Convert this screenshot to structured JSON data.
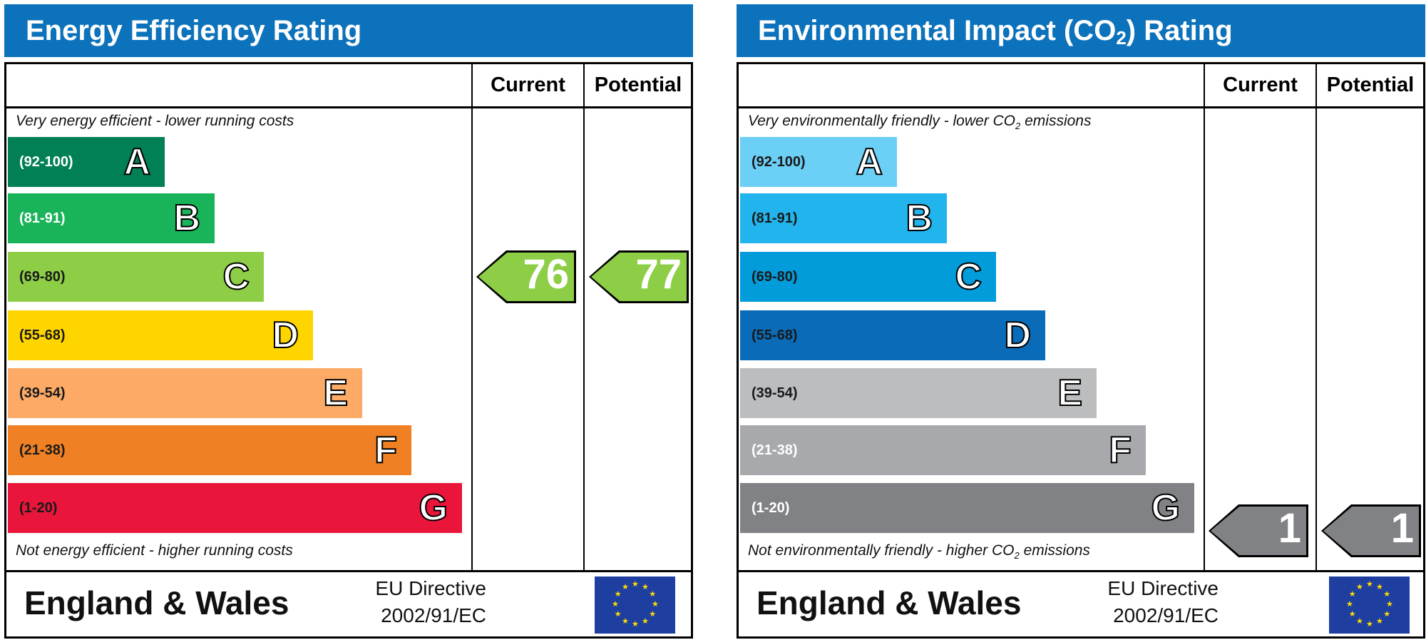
{
  "chart_data": [
    {
      "type": "table",
      "title": "Energy Efficiency Rating",
      "columns": [
        "Current",
        "Potential"
      ],
      "top_note": {
        "text": "Very energy efficient - lower running costs"
      },
      "bottom_note": {
        "text": "Not energy efficient - higher running costs"
      },
      "bands": [
        {
          "range": "(92-100)",
          "letter": "A",
          "color": "#008054",
          "text_color": "#ffffff"
        },
        {
          "range": "(81-91)",
          "letter": "B",
          "color": "#19b459",
          "text_color": "#ffffff"
        },
        {
          "range": "(69-80)",
          "letter": "C",
          "color": "#8dce46",
          "text_color": "#1a1a1a"
        },
        {
          "range": "(55-68)",
          "letter": "D",
          "color": "#ffd500",
          "text_color": "#1a1a1a"
        },
        {
          "range": "(39-54)",
          "letter": "E",
          "color": "#fcaa65",
          "text_color": "#1a1a1a"
        },
        {
          "range": "(21-38)",
          "letter": "F",
          "color": "#ef8023",
          "text_color": "#1a1a1a"
        },
        {
          "range": "(1-20)",
          "letter": "G",
          "color": "#e9153b",
          "text_color": "#1a1a1a"
        }
      ],
      "current": {
        "value": "76",
        "band": "C",
        "color": "#8dce46"
      },
      "potential": {
        "value": "77",
        "band": "C",
        "color": "#8dce46"
      },
      "footer": {
        "region": "England & Wales",
        "directive_line1": "EU Directive",
        "directive_line2": "2002/91/EC"
      },
      "header_color": "#0c72bb"
    },
    {
      "type": "table",
      "title": "Environmental Impact (CO2) Rating",
      "title_parts": {
        "pre": "Environmental Impact (CO",
        "sub": "2",
        "post": ") Rating"
      },
      "columns": [
        "Current",
        "Potential"
      ],
      "top_note": {
        "pre": "Very environmentally friendly - lower CO",
        "sub": "2",
        "post": " emissions"
      },
      "bottom_note": {
        "pre": "Not environmentally friendly - higher CO",
        "sub": "2",
        "post": " emissions"
      },
      "bands": [
        {
          "range": "(92-100)",
          "letter": "A",
          "color": "#6ccff6",
          "text_color": "#1a1a1a"
        },
        {
          "range": "(81-91)",
          "letter": "B",
          "color": "#22b5ed",
          "text_color": "#1a1a1a"
        },
        {
          "range": "(69-80)",
          "letter": "C",
          "color": "#029cdb",
          "text_color": "#1a1a1a"
        },
        {
          "range": "(55-68)",
          "letter": "D",
          "color": "#0a6cb8",
          "text_color": "#1a1a1a"
        },
        {
          "range": "(39-54)",
          "letter": "E",
          "color": "#bbbdbf",
          "text_color": "#1a1a1a"
        },
        {
          "range": "(21-38)",
          "letter": "F",
          "color": "#a7a9ac",
          "text_color": "#ffffff"
        },
        {
          "range": "(1-20)",
          "letter": "G",
          "color": "#808285",
          "text_color": "#ffffff"
        }
      ],
      "current": {
        "value": "1",
        "band": "G",
        "color": "#808285"
      },
      "potential": {
        "value": "1",
        "band": "G",
        "color": "#808285"
      },
      "footer": {
        "region": "England & Wales",
        "directive_line1": "EU Directive",
        "directive_line2": "2002/91/EC"
      },
      "header_color": "#0c72bb"
    }
  ]
}
